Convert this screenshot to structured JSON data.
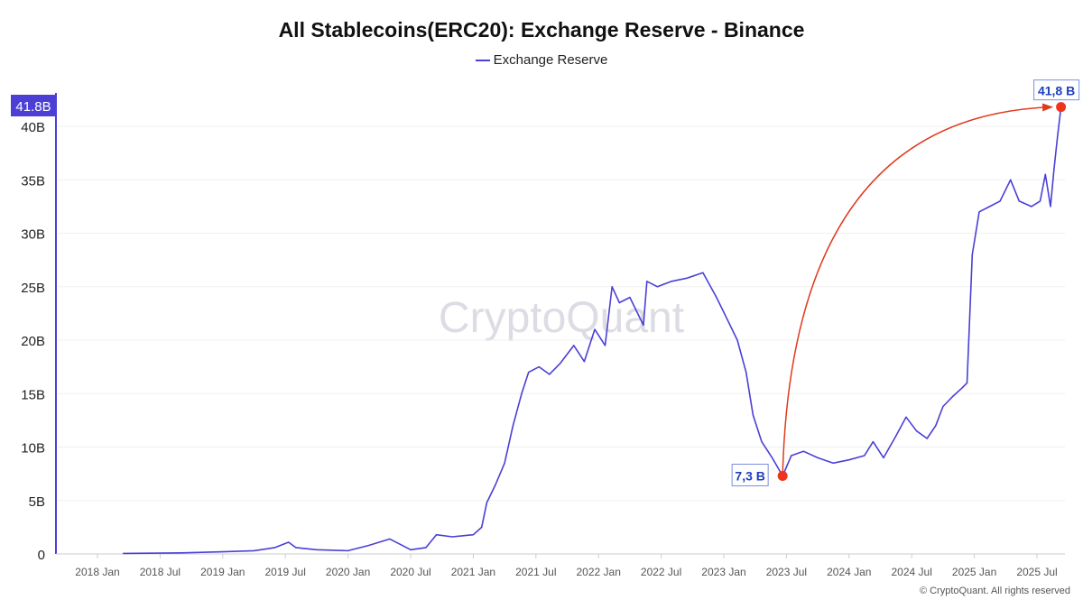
{
  "chart_data": {
    "type": "line",
    "title": "All Stablecoins(ERC20): Exchange Reserve - Binance",
    "legend": {
      "entries": [
        "Exchange Reserve"
      ],
      "placement": "top"
    },
    "ylim": [
      0,
      42
    ],
    "y_ticks": [
      {
        "v": 0,
        "label": "0"
      },
      {
        "v": 5,
        "label": "5B"
      },
      {
        "v": 10,
        "label": "10B"
      },
      {
        "v": 15,
        "label": "15B"
      },
      {
        "v": 20,
        "label": "20B"
      },
      {
        "v": 25,
        "label": "25B"
      },
      {
        "v": 30,
        "label": "30B"
      },
      {
        "v": 35,
        "label": "35B"
      },
      {
        "v": 40,
        "label": "40B"
      }
    ],
    "x_ticks": [
      {
        "d": "2018-01-01",
        "label": "2018 Jan"
      },
      {
        "d": "2018-07-01",
        "label": "2018 Jul"
      },
      {
        "d": "2019-01-01",
        "label": "2019 Jan"
      },
      {
        "d": "2019-07-01",
        "label": "2019 Jul"
      },
      {
        "d": "2020-01-01",
        "label": "2020 Jan"
      },
      {
        "d": "2020-07-01",
        "label": "2020 Jul"
      },
      {
        "d": "2021-01-01",
        "label": "2021 Jan"
      },
      {
        "d": "2021-07-01",
        "label": "2021 Jul"
      },
      {
        "d": "2022-01-01",
        "label": "2022 Jan"
      },
      {
        "d": "2022-07-01",
        "label": "2022 Jul"
      },
      {
        "d": "2023-01-01",
        "label": "2023 Jan"
      },
      {
        "d": "2023-07-01",
        "label": "2023 Jul"
      },
      {
        "d": "2024-01-01",
        "label": "2024 Jan"
      },
      {
        "d": "2024-07-01",
        "label": "2024 Jul"
      },
      {
        "d": "2025-01-01",
        "label": "2025 Jan"
      },
      {
        "d": "2025-07-01",
        "label": "2025 Jul"
      }
    ],
    "grid": "horizontal",
    "series": [
      {
        "name": "Exchange Reserve",
        "color": "#4b3fd6",
        "points": [
          [
            "2018-03-15",
            0.05
          ],
          [
            "2018-09-01",
            0.1
          ],
          [
            "2019-01-01",
            0.2
          ],
          [
            "2019-04-01",
            0.3
          ],
          [
            "2019-06-01",
            0.6
          ],
          [
            "2019-07-10",
            1.1
          ],
          [
            "2019-08-01",
            0.6
          ],
          [
            "2019-10-01",
            0.4
          ],
          [
            "2020-01-01",
            0.3
          ],
          [
            "2020-03-01",
            0.8
          ],
          [
            "2020-05-01",
            1.4
          ],
          [
            "2020-06-01",
            0.9
          ],
          [
            "2020-07-01",
            0.4
          ],
          [
            "2020-08-15",
            0.6
          ],
          [
            "2020-09-15",
            1.8
          ],
          [
            "2020-11-01",
            1.6
          ],
          [
            "2021-01-01",
            1.8
          ],
          [
            "2021-01-25",
            2.5
          ],
          [
            "2021-02-10",
            4.8
          ],
          [
            "2021-03-05",
            6.5
          ],
          [
            "2021-04-01",
            8.5
          ],
          [
            "2021-04-25",
            12
          ],
          [
            "2021-05-20",
            15
          ],
          [
            "2021-06-10",
            17
          ],
          [
            "2021-07-10",
            17.5
          ],
          [
            "2021-08-10",
            16.8
          ],
          [
            "2021-09-10",
            17.8
          ],
          [
            "2021-10-20",
            19.5
          ],
          [
            "2021-11-20",
            18
          ],
          [
            "2021-12-20",
            21
          ],
          [
            "2022-01-20",
            19.5
          ],
          [
            "2022-02-10",
            25
          ],
          [
            "2022-03-01",
            23.5
          ],
          [
            "2022-04-01",
            24
          ],
          [
            "2022-05-10",
            21.4
          ],
          [
            "2022-05-20",
            25.5
          ],
          [
            "2022-06-20",
            25
          ],
          [
            "2022-08-01",
            25.5
          ],
          [
            "2022-09-15",
            25.8
          ],
          [
            "2022-11-01",
            26.3
          ],
          [
            "2022-12-10",
            24
          ],
          [
            "2023-01-10",
            22
          ],
          [
            "2023-02-10",
            20
          ],
          [
            "2023-03-05",
            17
          ],
          [
            "2023-03-25",
            13
          ],
          [
            "2023-04-20",
            10.5
          ],
          [
            "2023-05-20",
            9
          ],
          [
            "2023-06-20",
            7.3
          ],
          [
            "2023-07-15",
            9.2
          ],
          [
            "2023-08-20",
            9.6
          ],
          [
            "2023-10-01",
            9
          ],
          [
            "2023-11-15",
            8.5
          ],
          [
            "2024-01-01",
            8.8
          ],
          [
            "2024-02-15",
            9.2
          ],
          [
            "2024-03-10",
            10.5
          ],
          [
            "2024-04-10",
            9
          ],
          [
            "2024-05-15",
            11
          ],
          [
            "2024-06-15",
            12.8
          ],
          [
            "2024-07-15",
            11.5
          ],
          [
            "2024-08-15",
            10.8
          ],
          [
            "2024-09-10",
            12
          ],
          [
            "2024-10-01",
            13.8
          ],
          [
            "2024-11-01",
            14.8
          ],
          [
            "2024-11-25",
            15.5
          ],
          [
            "2024-12-10",
            16
          ],
          [
            "2024-12-25",
            28
          ],
          [
            "2025-01-15",
            32
          ],
          [
            "2025-02-15",
            32.5
          ],
          [
            "2025-03-15",
            33
          ],
          [
            "2025-04-15",
            35
          ],
          [
            "2025-05-10",
            33
          ],
          [
            "2025-06-15",
            32.5
          ],
          [
            "2025-07-10",
            33
          ],
          [
            "2025-07-25",
            35.5
          ],
          [
            "2025-08-10",
            32.5
          ],
          [
            "2025-08-20",
            36
          ],
          [
            "2025-08-30",
            39
          ],
          [
            "2025-09-10",
            41.8
          ]
        ]
      }
    ],
    "annotations": [
      {
        "d": "2023-06-20",
        "v": 7.3,
        "label": "7,3 B"
      },
      {
        "d": "2025-09-10",
        "v": 41.8,
        "label": "41,8 B"
      }
    ],
    "current_value_badge": "41.8B",
    "watermark": "CryptoQuant"
  },
  "footer": {
    "copyright": "© CryptoQuant. All rights reserved"
  }
}
